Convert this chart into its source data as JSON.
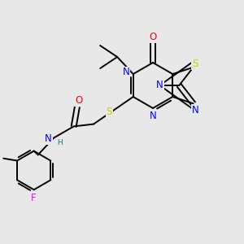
{
  "bg_color": "#e8e8e8",
  "atom_colors": {
    "N": "#0000ff",
    "O": "#ff0000",
    "S": "#cccc00",
    "F": "#ff00ff",
    "C": "#000000",
    "H": "#008080"
  },
  "font_size": 8.5,
  "line_width": 1.4,
  "figsize": [
    3.0,
    3.0
  ],
  "dpi": 100
}
